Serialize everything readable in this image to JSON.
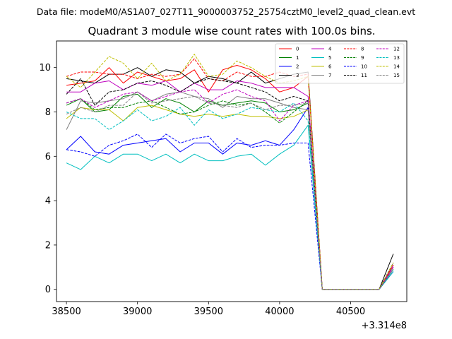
{
  "figure": {
    "suptitle": "Data file: modeM0/AS1A07_027T11_9000003752_25754cztM0_level2_quad_clean.evt"
  },
  "chart_data": {
    "type": "line",
    "title": "Quadrant 3 module wise count rates with 100.0s bins.",
    "xlabel": "",
    "ylabel": "",
    "x_offset_label": "+3.314e8",
    "x_offset": 331400000,
    "x": [
      38500,
      38600,
      38700,
      38800,
      38900,
      39000,
      39100,
      39200,
      39300,
      39400,
      39500,
      39600,
      39700,
      39800,
      39900,
      40000,
      40100,
      40200,
      40300,
      40400,
      40500,
      40600,
      40700,
      40800
    ],
    "xlim": [
      38430,
      40895
    ],
    "ylim": [
      -0.55,
      11.2
    ],
    "xticks": [
      38500,
      39000,
      39500,
      40000,
      40500
    ],
    "yticks": [
      0,
      2,
      4,
      6,
      8,
      10
    ],
    "grid": false,
    "legend_position": "top-right",
    "series": [
      {
        "name": "0",
        "color": "#ff0000",
        "dash": false,
        "values": [
          9.2,
          9.3,
          9.4,
          10.0,
          9.3,
          9.8,
          9.6,
          9.4,
          9.5,
          9.9,
          8.9,
          9.9,
          10.1,
          9.9,
          9.5,
          8.9,
          9.1,
          9.6,
          0,
          0,
          0,
          0,
          0,
          1.1
        ]
      },
      {
        "name": "1",
        "color": "#008000",
        "dash": false,
        "values": [
          8.3,
          8.6,
          8.0,
          8.1,
          8.7,
          8.8,
          8.2,
          8.6,
          8.4,
          8.0,
          8.5,
          8.3,
          8.4,
          8.5,
          8.4,
          8.0,
          8.1,
          8.4,
          0,
          0,
          0,
          0,
          0,
          1.0
        ]
      },
      {
        "name": "2",
        "color": "#0000ff",
        "dash": false,
        "values": [
          6.3,
          6.9,
          6.2,
          6.1,
          6.5,
          6.6,
          6.7,
          6.8,
          6.2,
          6.6,
          6.6,
          6.1,
          6.6,
          6.5,
          6.7,
          6.5,
          7.2,
          8.2,
          0,
          0,
          0,
          0,
          0,
          0.8
        ]
      },
      {
        "name": "3",
        "color": "#000000",
        "dash": false,
        "values": [
          9.5,
          9.4,
          9.3,
          9.7,
          9.7,
          10.0,
          9.6,
          9.9,
          9.8,
          9.3,
          9.6,
          9.5,
          9.3,
          9.8,
          9.3,
          9.5,
          9.7,
          9.8,
          0,
          0,
          0,
          0,
          0,
          1.6
        ]
      },
      {
        "name": "4",
        "color": "#bf00bf",
        "dash": false,
        "values": [
          8.9,
          8.9,
          9.3,
          9.4,
          9.0,
          9.3,
          9.2,
          9.4,
          8.9,
          9.3,
          9.0,
          9.0,
          9.4,
          9.3,
          9.1,
          9.1,
          9.1,
          8.7,
          0,
          0,
          0,
          0,
          0,
          1.1
        ]
      },
      {
        "name": "5",
        "color": "#00bfbf",
        "dash": false,
        "values": [
          5.7,
          5.4,
          6.0,
          5.7,
          6.1,
          6.1,
          5.8,
          6.1,
          5.7,
          6.1,
          5.8,
          5.8,
          6.0,
          6.1,
          5.6,
          6.1,
          6.5,
          7.4,
          0,
          0,
          0,
          0,
          0,
          0.8
        ]
      },
      {
        "name": "6",
        "color": "#bfbf00",
        "dash": false,
        "values": [
          7.7,
          8.2,
          8.1,
          8.1,
          7.6,
          8.2,
          8.3,
          8.1,
          7.9,
          7.8,
          7.9,
          7.8,
          7.9,
          7.8,
          7.8,
          7.7,
          7.8,
          8.1,
          0,
          0,
          0,
          0,
          0,
          1.0
        ]
      },
      {
        "name": "7",
        "color": "#808080",
        "dash": false,
        "values": [
          7.2,
          8.5,
          8.4,
          8.5,
          8.6,
          8.9,
          8.5,
          8.8,
          8.9,
          8.7,
          8.6,
          8.2,
          8.7,
          8.6,
          8.6,
          8.4,
          8.2,
          8.1,
          0,
          0,
          0,
          0,
          0,
          1.0
        ]
      },
      {
        "name": "8",
        "color": "#ff0000",
        "dash": true,
        "values": [
          9.6,
          9.8,
          9.8,
          9.7,
          9.7,
          9.5,
          9.7,
          9.6,
          9.7,
          10.4,
          9.5,
          9.4,
          9.8,
          9.6,
          9.6,
          9.8,
          9.6,
          9.7,
          0,
          0,
          0,
          0,
          0,
          1.1
        ]
      },
      {
        "name": "9",
        "color": "#008000",
        "dash": true,
        "values": [
          8.4,
          8.6,
          8.1,
          8.2,
          8.2,
          8.4,
          8.5,
          8.2,
          7.9,
          8.0,
          8.3,
          8.5,
          8.3,
          8.4,
          8.0,
          7.5,
          8.0,
          8.5,
          0,
          0,
          0,
          0,
          0,
          0.9
        ]
      },
      {
        "name": "10",
        "color": "#0000ff",
        "dash": true,
        "values": [
          6.3,
          6.2,
          6.0,
          6.5,
          6.7,
          7.0,
          6.4,
          7.0,
          6.6,
          6.8,
          6.9,
          6.2,
          6.8,
          6.4,
          6.5,
          6.5,
          6.6,
          6.6,
          0,
          0,
          0,
          0,
          0,
          0.9
        ]
      },
      {
        "name": "11",
        "color": "#000000",
        "dash": true,
        "values": [
          8.8,
          9.5,
          8.3,
          8.9,
          9.0,
          9.3,
          9.4,
          9.2,
          8.9,
          9.3,
          9.5,
          9.4,
          9.3,
          9.1,
          8.9,
          8.5,
          8.7,
          8.5,
          0,
          0,
          0,
          0,
          0,
          1.2
        ]
      },
      {
        "name": "12",
        "color": "#bf00bf",
        "dash": true,
        "values": [
          8.4,
          8.6,
          8.2,
          8.5,
          8.8,
          8.9,
          8.5,
          8.7,
          8.9,
          9.0,
          8.4,
          8.8,
          9.0,
          8.7,
          8.5,
          7.6,
          8.3,
          8.5,
          0,
          0,
          0,
          0,
          0,
          1.0
        ]
      },
      {
        "name": "13",
        "color": "#00bfbf",
        "dash": true,
        "values": [
          8.0,
          7.7,
          7.7,
          7.2,
          7.6,
          8.1,
          7.6,
          7.8,
          8.2,
          7.4,
          8.1,
          7.7,
          7.9,
          8.2,
          8.1,
          8.0,
          8.4,
          7.6,
          0,
          0,
          0,
          0,
          0,
          0.9
        ]
      },
      {
        "name": "14",
        "color": "#bfbf00",
        "dash": true,
        "values": [
          9.6,
          9.1,
          9.8,
          10.5,
          10.2,
          9.5,
          10.2,
          9.4,
          9.7,
          10.6,
          9.6,
          9.7,
          10.3,
          10.0,
          9.6,
          9.3,
          9.4,
          9.6,
          0,
          0,
          0,
          0,
          0,
          1.2
        ]
      },
      {
        "name": "15",
        "color": "#808080",
        "dash": true,
        "values": [
          7.9,
          8.2,
          8.0,
          8.3,
          8.3,
          8.9,
          8.4,
          8.5,
          8.6,
          8.7,
          8.4,
          8.3,
          8.2,
          8.4,
          8.1,
          8.3,
          8.3,
          8.4,
          0,
          0,
          0,
          0,
          0,
          0.9
        ]
      }
    ]
  }
}
